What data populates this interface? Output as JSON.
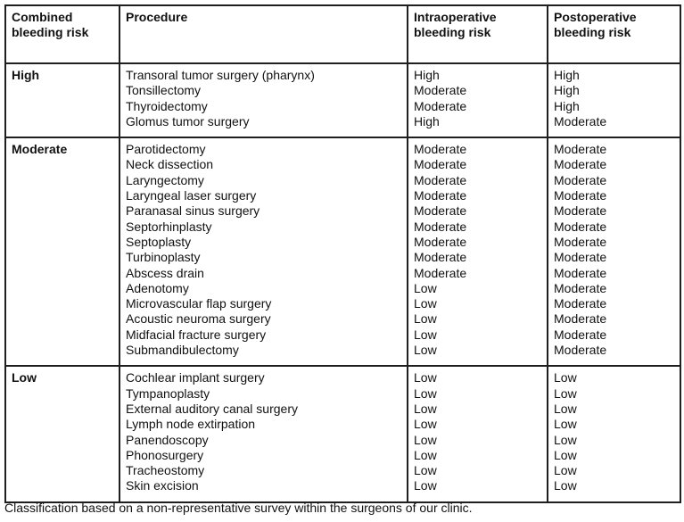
{
  "table": {
    "headers": {
      "combined": "Combined bleeding risk",
      "procedure": "Procedure",
      "intraoperative": "Intraoperative bleeding risk",
      "postoperative": "Postoperative bleeding risk"
    },
    "groups": [
      {
        "combined_risk": "High",
        "rows": [
          {
            "procedure": "Transoral tumor surgery (pharynx)",
            "intraoperative": "High",
            "postoperative": "High"
          },
          {
            "procedure": "Tonsillectomy",
            "intraoperative": "Moderate",
            "postoperative": "High"
          },
          {
            "procedure": "Thyroidectomy",
            "intraoperative": "Moderate",
            "postoperative": "High"
          },
          {
            "procedure": "Glomus tumor surgery",
            "intraoperative": "High",
            "postoperative": "Moderate"
          }
        ]
      },
      {
        "combined_risk": "Moderate",
        "rows": [
          {
            "procedure": "Parotidectomy",
            "intraoperative": "Moderate",
            "postoperative": "Moderate"
          },
          {
            "procedure": "Neck dissection",
            "intraoperative": "Moderate",
            "postoperative": "Moderate"
          },
          {
            "procedure": "Laryngectomy",
            "intraoperative": "Moderate",
            "postoperative": "Moderate"
          },
          {
            "procedure": "Laryngeal laser surgery",
            "intraoperative": "Moderate",
            "postoperative": "Moderate"
          },
          {
            "procedure": "Paranasal sinus surgery",
            "intraoperative": "Moderate",
            "postoperative": "Moderate"
          },
          {
            "procedure": "Septorhinplasty",
            "intraoperative": "Moderate",
            "postoperative": "Moderate"
          },
          {
            "procedure": "Septoplasty",
            "intraoperative": "Moderate",
            "postoperative": "Moderate"
          },
          {
            "procedure": "Turbinoplasty",
            "intraoperative": "Moderate",
            "postoperative": "Moderate"
          },
          {
            "procedure": "Abscess drain",
            "intraoperative": "Moderate",
            "postoperative": "Moderate"
          },
          {
            "procedure": "Adenotomy",
            "intraoperative": "Low",
            "postoperative": "Moderate"
          },
          {
            "procedure": "Microvascular flap surgery",
            "intraoperative": "Low",
            "postoperative": "Moderate"
          },
          {
            "procedure": "Acoustic neuroma surgery",
            "intraoperative": "Low",
            "postoperative": "Moderate"
          },
          {
            "procedure": "Midfacial fracture surgery",
            "intraoperative": "Low",
            "postoperative": "Moderate"
          },
          {
            "procedure": "Submandibulectomy",
            "intraoperative": "Low",
            "postoperative": "Moderate"
          }
        ]
      },
      {
        "combined_risk": "Low",
        "rows": [
          {
            "procedure": "Cochlear implant surgery",
            "intraoperative": "Low",
            "postoperative": "Low"
          },
          {
            "procedure": "Tympanoplasty",
            "intraoperative": "Low",
            "postoperative": "Low"
          },
          {
            "procedure": "External auditory canal surgery",
            "intraoperative": "Low",
            "postoperative": "Low"
          },
          {
            "procedure": "Lymph node extirpation",
            "intraoperative": "Low",
            "postoperative": "Low"
          },
          {
            "procedure": "Panendoscopy",
            "intraoperative": "Low",
            "postoperative": "Low"
          },
          {
            "procedure": "Phonosurgery",
            "intraoperative": "Low",
            "postoperative": "Low"
          },
          {
            "procedure": "Tracheostomy",
            "intraoperative": "Low",
            "postoperative": "Low"
          },
          {
            "procedure": "Skin excision",
            "intraoperative": "Low",
            "postoperative": "Low"
          }
        ]
      }
    ]
  },
  "footnote": "Classification based on a non-representative survey within the surgeons of our clinic."
}
